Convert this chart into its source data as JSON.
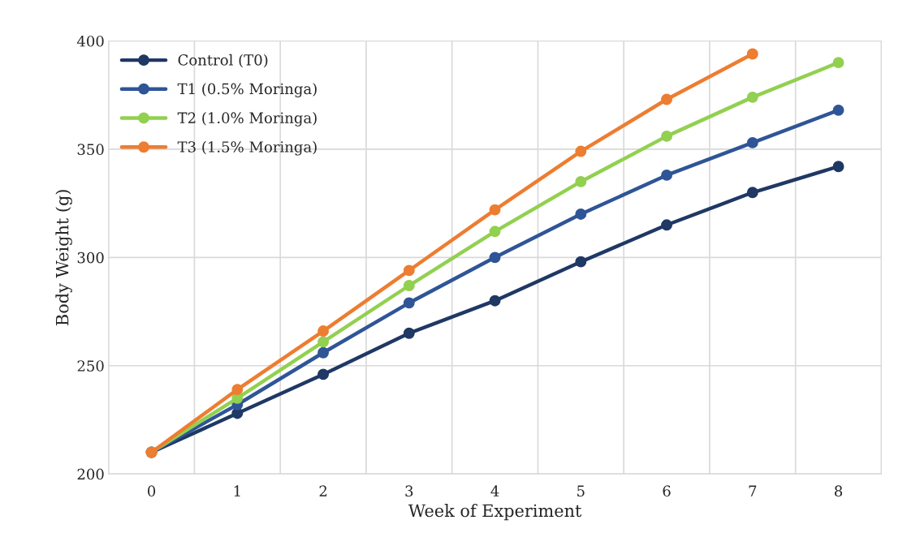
{
  "chart_data": {
    "type": "line",
    "xlabel": "Week of Experiment",
    "ylabel": "Body Weight (g)",
    "categories": [
      "0",
      "1",
      "2",
      "3",
      "4",
      "5",
      "6",
      "7",
      "8"
    ],
    "series": [
      {
        "name": "Control (T0)",
        "color": "#1f3864",
        "values": [
          210,
          228,
          246,
          265,
          280,
          298,
          315,
          330,
          342
        ]
      },
      {
        "name": "T1 (0.5% Moringa)",
        "color": "#2f5597",
        "values": [
          210,
          232,
          256,
          279,
          300,
          320,
          338,
          353,
          368
        ]
      },
      {
        "name": "T2 (1.0% Moringa)",
        "color": "#92d050",
        "values": [
          210,
          235,
          261,
          287,
          312,
          335,
          356,
          374,
          390
        ]
      },
      {
        "name": "T3 (1.5% Moringa)",
        "color": "#ed7d31",
        "values": [
          210,
          239,
          266,
          294,
          322,
          349,
          373,
          394,
          null
        ]
      }
    ],
    "ylim": [
      200,
      400
    ],
    "yticks": [
      200,
      250,
      300,
      350,
      400
    ],
    "grid": true,
    "legend": "top left",
    "marker": "circle",
    "line_style": "solid"
  }
}
